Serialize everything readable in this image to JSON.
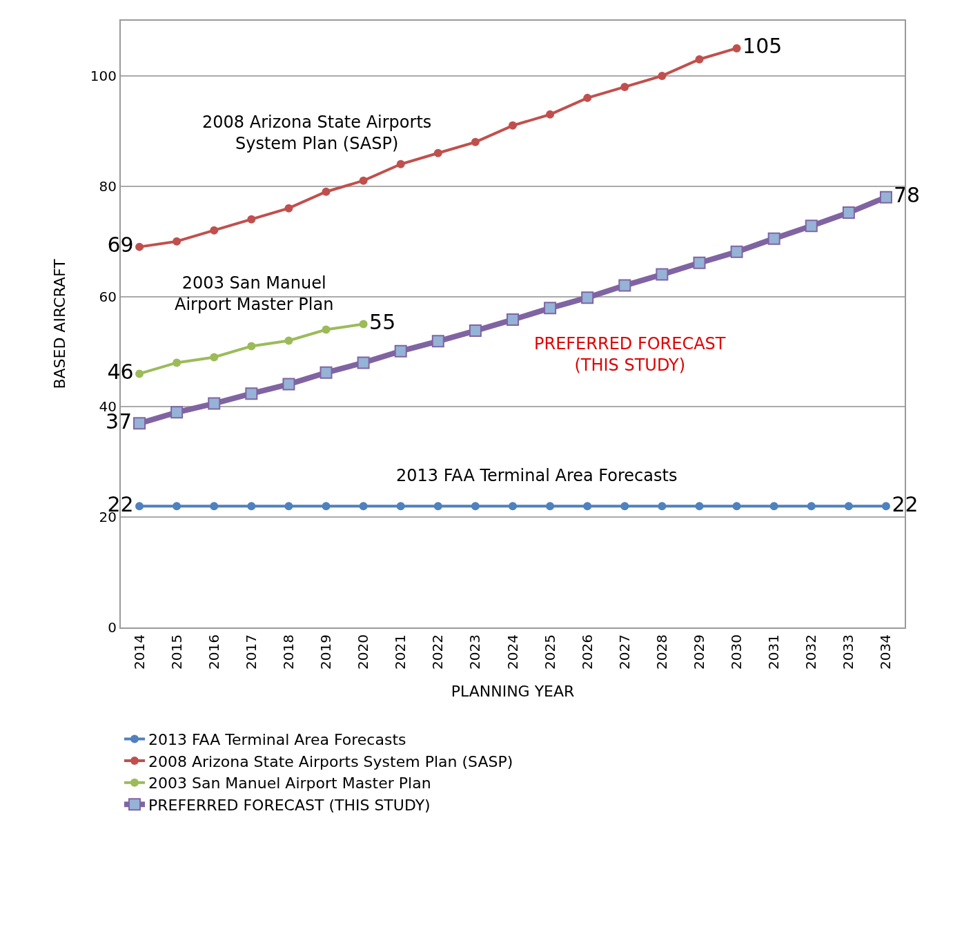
{
  "chart_data": {
    "type": "line",
    "categories": [
      "2014",
      "2015",
      "2016",
      "2017",
      "2018",
      "2019",
      "2020",
      "2021",
      "2022",
      "2023",
      "2024",
      "2025",
      "2026",
      "2027",
      "2028",
      "2029",
      "2030",
      "2031",
      "2032",
      "2033",
      "2034"
    ],
    "xlabel": "PLANNING YEAR",
    "ylabel": "BASED AIRCRAFT",
    "ylim": [
      0,
      110
    ],
    "yticks": [
      0,
      20,
      40,
      60,
      80,
      100
    ],
    "grid": "y",
    "legend": "bottom left",
    "series": [
      {
        "name": "2013 FAA Terminal Area Forecasts",
        "color": "#4f81bd",
        "marker": "circle",
        "values": [
          22,
          22,
          22,
          22,
          22,
          22,
          22,
          22,
          22,
          22,
          22,
          22,
          22,
          22,
          22,
          22,
          22,
          22,
          22,
          22,
          22
        ],
        "value_labels": [
          "22",
          null,
          null,
          null,
          null,
          null,
          null,
          null,
          null,
          null,
          null,
          null,
          null,
          null,
          null,
          null,
          null,
          null,
          null,
          null,
          "22"
        ]
      },
      {
        "name": "2008 Arizona State Airports System Plan (SASP)",
        "color": "#c0504d",
        "marker": "circle",
        "values": [
          69,
          70,
          72,
          74,
          76,
          79,
          81,
          84,
          86,
          88,
          91,
          93,
          96,
          98,
          100,
          103,
          105,
          null,
          null,
          null,
          null
        ],
        "value_labels": [
          "69",
          null,
          null,
          null,
          null,
          null,
          null,
          null,
          null,
          null,
          null,
          null,
          null,
          null,
          null,
          null,
          "105",
          null,
          null,
          null,
          null
        ]
      },
      {
        "name": "2003 San Manuel Airport Master Plan",
        "color": "#9bbb59",
        "marker": "circle",
        "values": [
          46,
          48,
          49,
          51,
          52,
          54,
          55,
          null,
          null,
          null,
          null,
          null,
          null,
          null,
          null,
          null,
          null,
          null,
          null,
          null,
          null
        ],
        "value_labels": [
          "46",
          null,
          null,
          null,
          null,
          null,
          "55",
          null,
          null,
          null,
          null,
          null,
          null,
          null,
          null,
          null,
          null,
          null,
          null,
          null,
          null
        ]
      },
      {
        "name": "PREFERRED FORECAST (THIS STUDY)",
        "color": "#8064a2",
        "marker": "square",
        "values": [
          37,
          39,
          40.6,
          42.4,
          44.1,
          46.2,
          48,
          50.1,
          51.9,
          53.8,
          55.8,
          57.9,
          59.8,
          62,
          64,
          66.1,
          68.1,
          70.5,
          72.8,
          75.2,
          78
        ],
        "value_labels": [
          "37",
          null,
          null,
          null,
          null,
          null,
          null,
          null,
          null,
          null,
          null,
          null,
          null,
          null,
          null,
          null,
          null,
          null,
          null,
          null,
          "78"
        ]
      }
    ],
    "annotations": [
      "2008 Arizona State Airports\nSystem Plan (SASP)",
      "2003 San Manuel\nAirport Master Plan",
      "2013 FAA Terminal Area Forecasts",
      "PREFERRED FORECAST\n(THIS STUDY)"
    ]
  }
}
